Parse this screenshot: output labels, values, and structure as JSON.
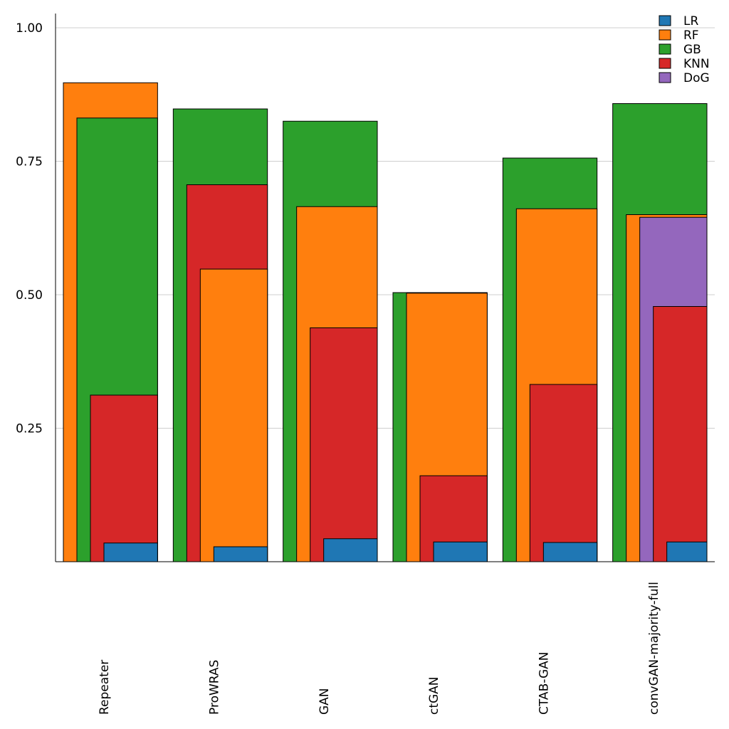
{
  "chart_data": {
    "type": "bar",
    "title": "",
    "xlabel": "",
    "ylabel": "",
    "ylim": [
      0,
      1.0
    ],
    "yticks": [
      0.25,
      0.5,
      0.75,
      1.0
    ],
    "ytick_labels": [
      "0.25",
      "0.50",
      "0.75",
      "1.00"
    ],
    "grid": "horizontal",
    "legend_position": "top-right",
    "categories": [
      "Repeater",
      "ProWRAS",
      "GAN",
      "ctGAN",
      "CTAB-GAN",
      "convGAN-majority-full"
    ],
    "series": [
      {
        "name": "LR",
        "color": "#1f77b4",
        "values": [
          0.035,
          0.028,
          0.043,
          0.037,
          0.036,
          0.037
        ]
      },
      {
        "name": "RF",
        "color": "#ff7f0e",
        "values": [
          0.897,
          0.548,
          0.665,
          0.503,
          0.661,
          0.65
        ]
      },
      {
        "name": "GB",
        "color": "#2ca02c",
        "values": [
          0.831,
          0.848,
          0.825,
          0.504,
          0.756,
          0.858
        ]
      },
      {
        "name": "KNN",
        "color": "#d62728",
        "values": [
          0.312,
          0.706,
          0.438,
          0.161,
          0.332,
          0.478
        ]
      },
      {
        "name": "DoG",
        "color": "#9467bd",
        "values": [
          null,
          null,
          null,
          null,
          null,
          0.645
        ]
      }
    ]
  }
}
